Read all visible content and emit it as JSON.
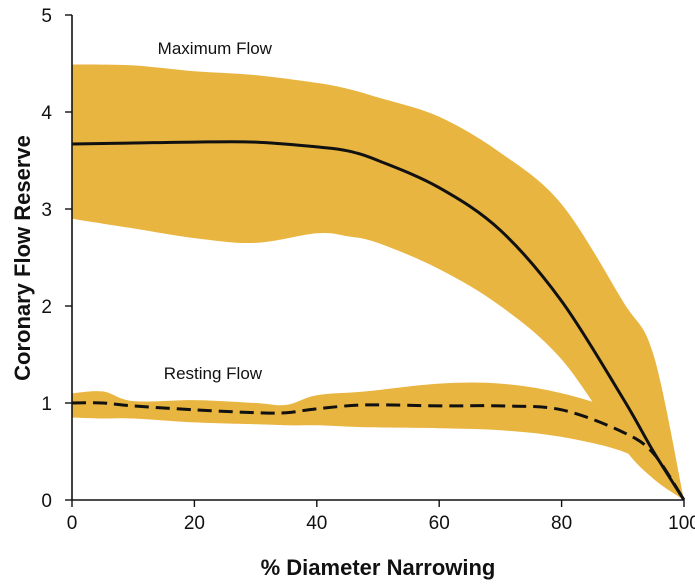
{
  "chart_data": {
    "type": "line",
    "title": "",
    "xlabel": "% Diameter Narrowing",
    "ylabel": "Coronary Flow Reserve",
    "xlim": [
      0,
      100
    ],
    "ylim": [
      0,
      5
    ],
    "xticks": [
      "0",
      "20",
      "40",
      "60",
      "80",
      "100"
    ],
    "yticks": [
      "0",
      "1",
      "2",
      "3",
      "4",
      "5"
    ],
    "grid": false,
    "legend": "none",
    "colors": {
      "band": "#E9B541",
      "line": "#111111"
    },
    "annotations": [
      {
        "text": "Maximum Flow",
        "x": 14,
        "y": 4.6
      },
      {
        "text": "Resting Flow",
        "x": 15,
        "y": 1.25
      }
    ],
    "series": [
      {
        "label": "Maximum Flow",
        "line_style": "solid",
        "x": [
          0,
          10,
          20,
          30,
          40,
          45,
          50,
          60,
          70,
          80,
          90,
          95,
          100
        ],
        "y": [
          3.67,
          3.68,
          3.69,
          3.69,
          3.64,
          3.6,
          3.5,
          3.22,
          2.78,
          2.05,
          1.05,
          0.5,
          0.0
        ],
        "upper": [
          4.49,
          4.48,
          4.42,
          4.38,
          4.3,
          4.24,
          4.15,
          3.95,
          3.58,
          3.05,
          2.05,
          1.5,
          0.0
        ],
        "lower": [
          2.9,
          2.8,
          2.7,
          2.65,
          2.75,
          2.72,
          2.65,
          2.38,
          2.0,
          1.45,
          0.55,
          0.22,
          0.0
        ]
      },
      {
        "label": "Resting Flow",
        "line_style": "dashed",
        "x": [
          0,
          5,
          10,
          20,
          30,
          35,
          40,
          48,
          60,
          70,
          80,
          90,
          95,
          100
        ],
        "y": [
          1.0,
          1.0,
          0.97,
          0.93,
          0.9,
          0.9,
          0.94,
          0.98,
          0.97,
          0.97,
          0.93,
          0.7,
          0.48,
          0.0
        ],
        "upper": [
          1.1,
          1.12,
          1.02,
          1.03,
          1.0,
          0.98,
          1.08,
          1.12,
          1.2,
          1.2,
          1.1,
          0.9,
          0.68,
          0.0
        ],
        "lower": [
          0.85,
          0.84,
          0.84,
          0.8,
          0.78,
          0.77,
          0.77,
          0.75,
          0.74,
          0.72,
          0.65,
          0.5,
          0.3,
          0.0
        ]
      }
    ]
  }
}
